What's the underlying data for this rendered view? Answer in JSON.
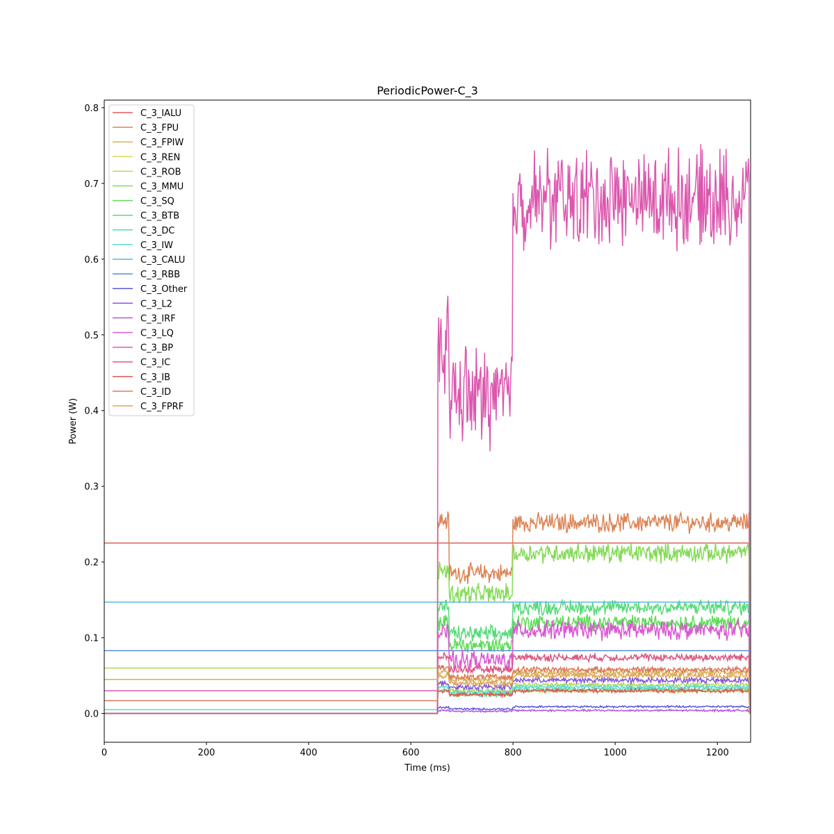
{
  "chart_data": {
    "type": "line",
    "title": "PeriodicPower-C_3",
    "xlabel": "Time (ms)",
    "ylabel": "Power (W)",
    "xlim": [
      0,
      1265
    ],
    "ylim": [
      -0.038,
      0.81
    ],
    "x_ticks": [
      0,
      200,
      400,
      600,
      800,
      1000,
      1200
    ],
    "y_ticks": [
      0.0,
      0.1,
      0.2,
      0.3,
      0.4,
      0.5,
      0.6,
      0.7,
      0.8
    ],
    "y_tick_labels": [
      "0.0",
      "0.1",
      "0.2",
      "0.3",
      "0.4",
      "0.5",
      "0.6",
      "0.7",
      "0.8"
    ],
    "legend_position": "upper left",
    "grid": false,
    "phase_boundaries_ms": [
      652,
      675,
      800,
      1262
    ],
    "series": [
      {
        "name": "C_3_IALU",
        "color": "#db5f57",
        "values": {
          "idle": 0.225,
          "p1": 0.225,
          "p2": 0.225,
          "p3": 0.225,
          "noise": 0.0
        }
      },
      {
        "name": "C_3_FPU",
        "color": "#db8557",
        "values": {
          "idle": 0.0,
          "p1": 0.255,
          "p2": 0.185,
          "p3": 0.252,
          "noise": 0.01
        }
      },
      {
        "name": "C_3_FPIW",
        "color": "#dbb057",
        "values": {
          "idle": 0.0,
          "p1": 0.055,
          "p2": 0.045,
          "p3": 0.054,
          "noise": 0.003
        }
      },
      {
        "name": "C_3_REN",
        "color": "#d3db57",
        "values": {
          "idle": 0.0,
          "p1": 0.03,
          "p2": 0.025,
          "p3": 0.03,
          "noise": 0.002
        }
      },
      {
        "name": "C_3_ROB",
        "color": "#afdb57",
        "values": {
          "idle": 0.06,
          "p1": 0.04,
          "p2": 0.03,
          "p3": 0.038,
          "noise": 0.002
        }
      },
      {
        "name": "C_3_MMU",
        "color": "#84db57",
        "values": {
          "idle": 0.0,
          "p1": 0.19,
          "p2": 0.158,
          "p3": 0.212,
          "noise": 0.01
        }
      },
      {
        "name": "C_3_SQ",
        "color": "#5fdb57",
        "values": {
          "idle": 0.0,
          "p1": 0.12,
          "p2": 0.09,
          "p3": 0.12,
          "noise": 0.008
        }
      },
      {
        "name": "C_3_BTB",
        "color": "#57db7b",
        "values": {
          "idle": 0.0,
          "p1": 0.14,
          "p2": 0.105,
          "p3": 0.14,
          "noise": 0.008
        }
      },
      {
        "name": "C_3_DC",
        "color": "#57dba6",
        "values": {
          "idle": 0.0,
          "p1": 0.03,
          "p2": 0.025,
          "p3": 0.032,
          "noise": 0.002
        }
      },
      {
        "name": "C_3_IW",
        "color": "#57dbd1",
        "values": {
          "idle": 0.005,
          "p1": 0.035,
          "p2": 0.028,
          "p3": 0.035,
          "noise": 0.002
        }
      },
      {
        "name": "C_3_CALU",
        "color": "#57b9db",
        "values": {
          "idle": 0.147,
          "p1": 0.147,
          "p2": 0.147,
          "p3": 0.147,
          "noise": 0.0
        }
      },
      {
        "name": "C_3_RBB",
        "color": "#578edb",
        "values": {
          "idle": 0.083,
          "p1": 0.083,
          "p2": 0.083,
          "p3": 0.083,
          "noise": 0.0
        }
      },
      {
        "name": "C_3_Other",
        "color": "#5b57db",
        "values": {
          "idle": 0.0,
          "p1": 0.008,
          "p2": 0.006,
          "p3": 0.009,
          "noise": 0.001
        }
      },
      {
        "name": "C_3_L2",
        "color": "#8657db",
        "values": {
          "idle": 0.0,
          "p1": 0.04,
          "p2": 0.035,
          "p3": 0.044,
          "noise": 0.003
        }
      },
      {
        "name": "C_3_IRF",
        "color": "#b157db",
        "values": {
          "idle": 0.0,
          "p1": 0.004,
          "p2": 0.003,
          "p3": 0.004,
          "noise": 0.001
        }
      },
      {
        "name": "C_3_LQ",
        "color": "#db57d3",
        "values": {
          "idle": 0.0,
          "p1": 0.105,
          "p2": 0.07,
          "p3": 0.11,
          "noise": 0.01
        }
      },
      {
        "name": "C_3_BP",
        "color": "#db57ae",
        "values": {
          "idle": 0.03,
          "p1": 0.49,
          "p2": 0.42,
          "p3": 0.68,
          "noise": 0.05
        }
      },
      {
        "name": "C_3_IC",
        "color": "#db5782",
        "values": {
          "idle": 0.0,
          "p1": 0.075,
          "p2": 0.058,
          "p3": 0.074,
          "noise": 0.004
        }
      },
      {
        "name": "C_3_IB",
        "color": "#db5757",
        "values": {
          "idle": 0.0,
          "p1": 0.03,
          "p2": 0.025,
          "p3": 0.03,
          "noise": 0.002
        }
      },
      {
        "name": "C_3_ID",
        "color": "#db7b57",
        "values": {
          "idle": 0.017,
          "p1": 0.06,
          "p2": 0.048,
          "p3": 0.058,
          "noise": 0.003
        }
      },
      {
        "name": "C_3_FPRF",
        "color": "#dba657",
        "values": {
          "idle": 0.045,
          "p1": 0.05,
          "p2": 0.04,
          "p3": 0.05,
          "noise": 0.003
        }
      }
    ]
  }
}
